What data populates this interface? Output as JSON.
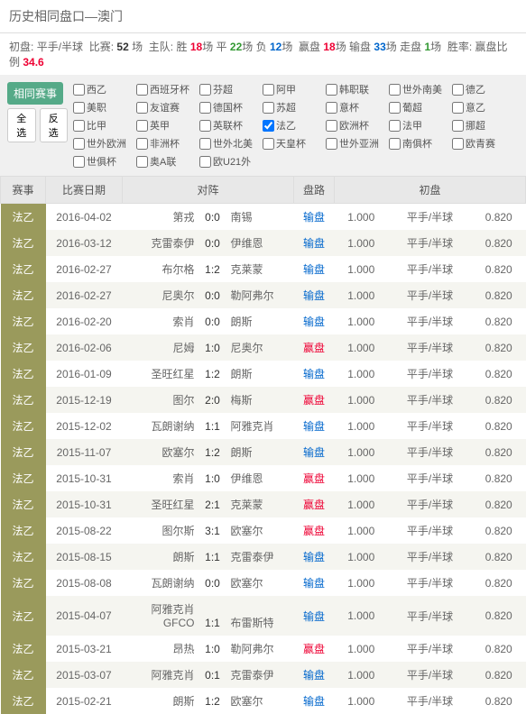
{
  "header": {
    "title": "历史相同盘口—澳门"
  },
  "stats": {
    "label_initial": "初盘:",
    "initial": "平手/半球",
    "label_matches": "比赛:",
    "matches": "52",
    "matches_unit": "场",
    "label_home": "主队:",
    "win_label": "胜",
    "win": "18",
    "draw_label": "平",
    "draw": "22",
    "lose_label": "负",
    "lose": "12",
    "label_handicap": "赢盘",
    "hwin": "18",
    "hlose_label": "输盘",
    "hlose": "33",
    "hpush_label": "走盘",
    "hpush": "1",
    "label_rate": "胜率:",
    "label_ratio": "赢盘比例",
    "ratio": "34.6"
  },
  "filter": {
    "btn_same": "相同赛事",
    "btn_all": "全选",
    "btn_inv": "反选",
    "leagues": [
      {
        "name": "西乙",
        "c": false
      },
      {
        "name": "西班牙杯",
        "c": false
      },
      {
        "name": "芬超",
        "c": false
      },
      {
        "name": "阿甲",
        "c": false
      },
      {
        "name": "韩职联",
        "c": false
      },
      {
        "name": "世外南美",
        "c": false
      },
      {
        "name": "德乙",
        "c": false
      },
      {
        "name": "美职",
        "c": false
      },
      {
        "name": "友谊赛",
        "c": false
      },
      {
        "name": "德国杯",
        "c": false
      },
      {
        "name": "苏超",
        "c": false
      },
      {
        "name": "意杯",
        "c": false
      },
      {
        "name": "葡超",
        "c": false
      },
      {
        "name": "意乙",
        "c": false
      },
      {
        "name": "比甲",
        "c": false
      },
      {
        "name": "英甲",
        "c": false
      },
      {
        "name": "英联杯",
        "c": false
      },
      {
        "name": "法乙",
        "c": true
      },
      {
        "name": "欧洲杯",
        "c": false
      },
      {
        "name": "法甲",
        "c": false
      },
      {
        "name": "挪超",
        "c": false
      },
      {
        "name": "世外欧洲",
        "c": false
      },
      {
        "name": "非洲杯",
        "c": false
      },
      {
        "name": "世外北美",
        "c": false
      },
      {
        "name": "天皇杯",
        "c": false
      },
      {
        "name": "世外亚洲",
        "c": false
      },
      {
        "name": "南俱杯",
        "c": false
      },
      {
        "name": "欧青赛",
        "c": false
      },
      {
        "name": "世俱杯",
        "c": false
      },
      {
        "name": "奥A联",
        "c": false
      },
      {
        "name": "欧U21外",
        "c": false
      }
    ]
  },
  "table": {
    "headers": {
      "league": "赛事",
      "date": "比赛日期",
      "match": "对阵",
      "result": "盘路",
      "odds": "初盘"
    },
    "rows": [
      {
        "lg": "法乙",
        "lc": "olive",
        "date": "2016-04-02",
        "h": "第戎",
        "s": "0:0",
        "a": "南锡",
        "r": "输盘",
        "rc": "blue",
        "o1": "1.000",
        "hd": "平手/半球",
        "o2": "0.820"
      },
      {
        "lg": "法乙",
        "lc": "olive",
        "date": "2016-03-12",
        "h": "克雷泰伊",
        "s": "0:0",
        "a": "伊维恩",
        "r": "输盘",
        "rc": "blue",
        "o1": "1.000",
        "hd": "平手/半球",
        "o2": "0.820"
      },
      {
        "lg": "法乙",
        "lc": "olive",
        "date": "2016-02-27",
        "h": "布尔格",
        "s": "1:2",
        "a": "克莱蒙",
        "r": "输盘",
        "rc": "blue",
        "o1": "1.000",
        "hd": "平手/半球",
        "o2": "0.820"
      },
      {
        "lg": "法乙",
        "lc": "olive",
        "date": "2016-02-27",
        "h": "尼奥尔",
        "s": "0:0",
        "a": "勒阿弗尔",
        "r": "输盘",
        "rc": "blue",
        "o1": "1.000",
        "hd": "平手/半球",
        "o2": "0.820"
      },
      {
        "lg": "法乙",
        "lc": "olive",
        "date": "2016-02-20",
        "h": "索肖",
        "s": "0:0",
        "a": "朗斯",
        "r": "输盘",
        "rc": "blue",
        "o1": "1.000",
        "hd": "平手/半球",
        "o2": "0.820"
      },
      {
        "lg": "法乙",
        "lc": "olive",
        "date": "2016-02-06",
        "h": "尼姆",
        "s": "1:0",
        "a": "尼奥尔",
        "r": "赢盘",
        "rc": "red",
        "o1": "1.000",
        "hd": "平手/半球",
        "o2": "0.820"
      },
      {
        "lg": "法乙",
        "lc": "olive",
        "date": "2016-01-09",
        "h": "圣旺红星",
        "s": "1:2",
        "a": "朗斯",
        "r": "输盘",
        "rc": "blue",
        "o1": "1.000",
        "hd": "平手/半球",
        "o2": "0.820"
      },
      {
        "lg": "法乙",
        "lc": "olive",
        "date": "2015-12-19",
        "h": "图尔",
        "s": "2:0",
        "a": "梅斯",
        "r": "赢盘",
        "rc": "red",
        "o1": "1.000",
        "hd": "平手/半球",
        "o2": "0.820"
      },
      {
        "lg": "法乙",
        "lc": "olive",
        "date": "2015-12-02",
        "h": "瓦朗谢纳",
        "s": "1:1",
        "a": "阿雅克肖",
        "r": "输盘",
        "rc": "blue",
        "o1": "1.000",
        "hd": "平手/半球",
        "o2": "0.820"
      },
      {
        "lg": "法乙",
        "lc": "olive",
        "date": "2015-11-07",
        "h": "欧塞尔",
        "s": "1:2",
        "a": "朗斯",
        "r": "输盘",
        "rc": "blue",
        "o1": "1.000",
        "hd": "平手/半球",
        "o2": "0.820"
      },
      {
        "lg": "法乙",
        "lc": "olive",
        "date": "2015-10-31",
        "h": "索肖",
        "s": "1:0",
        "a": "伊维恩",
        "r": "赢盘",
        "rc": "red",
        "o1": "1.000",
        "hd": "平手/半球",
        "o2": "0.820"
      },
      {
        "lg": "法乙",
        "lc": "olive",
        "date": "2015-10-31",
        "h": "圣旺红星",
        "s": "2:1",
        "a": "克莱蒙",
        "r": "赢盘",
        "rc": "red",
        "o1": "1.000",
        "hd": "平手/半球",
        "o2": "0.820"
      },
      {
        "lg": "法乙",
        "lc": "olive",
        "date": "2015-08-22",
        "h": "图尔斯",
        "s": "3:1",
        "a": "欧塞尔",
        "r": "赢盘",
        "rc": "red",
        "o1": "1.000",
        "hd": "平手/半球",
        "o2": "0.820"
      },
      {
        "lg": "法乙",
        "lc": "olive",
        "date": "2015-08-15",
        "h": "朗斯",
        "s": "1:1",
        "a": "克雷泰伊",
        "r": "输盘",
        "rc": "blue",
        "o1": "1.000",
        "hd": "平手/半球",
        "o2": "0.820"
      },
      {
        "lg": "法乙",
        "lc": "olive",
        "date": "2015-08-08",
        "h": "瓦朗谢纳",
        "s": "0:0",
        "a": "欧塞尔",
        "r": "输盘",
        "rc": "blue",
        "o1": "1.000",
        "hd": "平手/半球",
        "o2": "0.820"
      },
      {
        "lg": "法乙",
        "lc": "olive",
        "date": "2015-04-07",
        "h": "阿雅克肖GFCO",
        "s": "1:1",
        "a": "布雷斯特",
        "r": "输盘",
        "rc": "blue",
        "o1": "1.000",
        "hd": "平手/半球",
        "o2": "0.820"
      },
      {
        "lg": "法乙",
        "lc": "olive",
        "date": "2015-03-21",
        "h": "昂热",
        "s": "1:0",
        "a": "勒阿弗尔",
        "r": "赢盘",
        "rc": "red",
        "o1": "1.000",
        "hd": "平手/半球",
        "o2": "0.820"
      },
      {
        "lg": "法乙",
        "lc": "olive",
        "date": "2015-03-07",
        "h": "阿雅克肖",
        "s": "0:1",
        "a": "克雷泰伊",
        "r": "输盘",
        "rc": "blue",
        "o1": "1.000",
        "hd": "平手/半球",
        "o2": "0.820"
      },
      {
        "lg": "法乙",
        "lc": "olive",
        "date": "2015-02-21",
        "h": "朗斯",
        "s": "1:2",
        "a": "欧塞尔",
        "r": "输盘",
        "rc": "blue",
        "o1": "1.000",
        "hd": "平手/半球",
        "o2": "0.820"
      }
    ]
  }
}
